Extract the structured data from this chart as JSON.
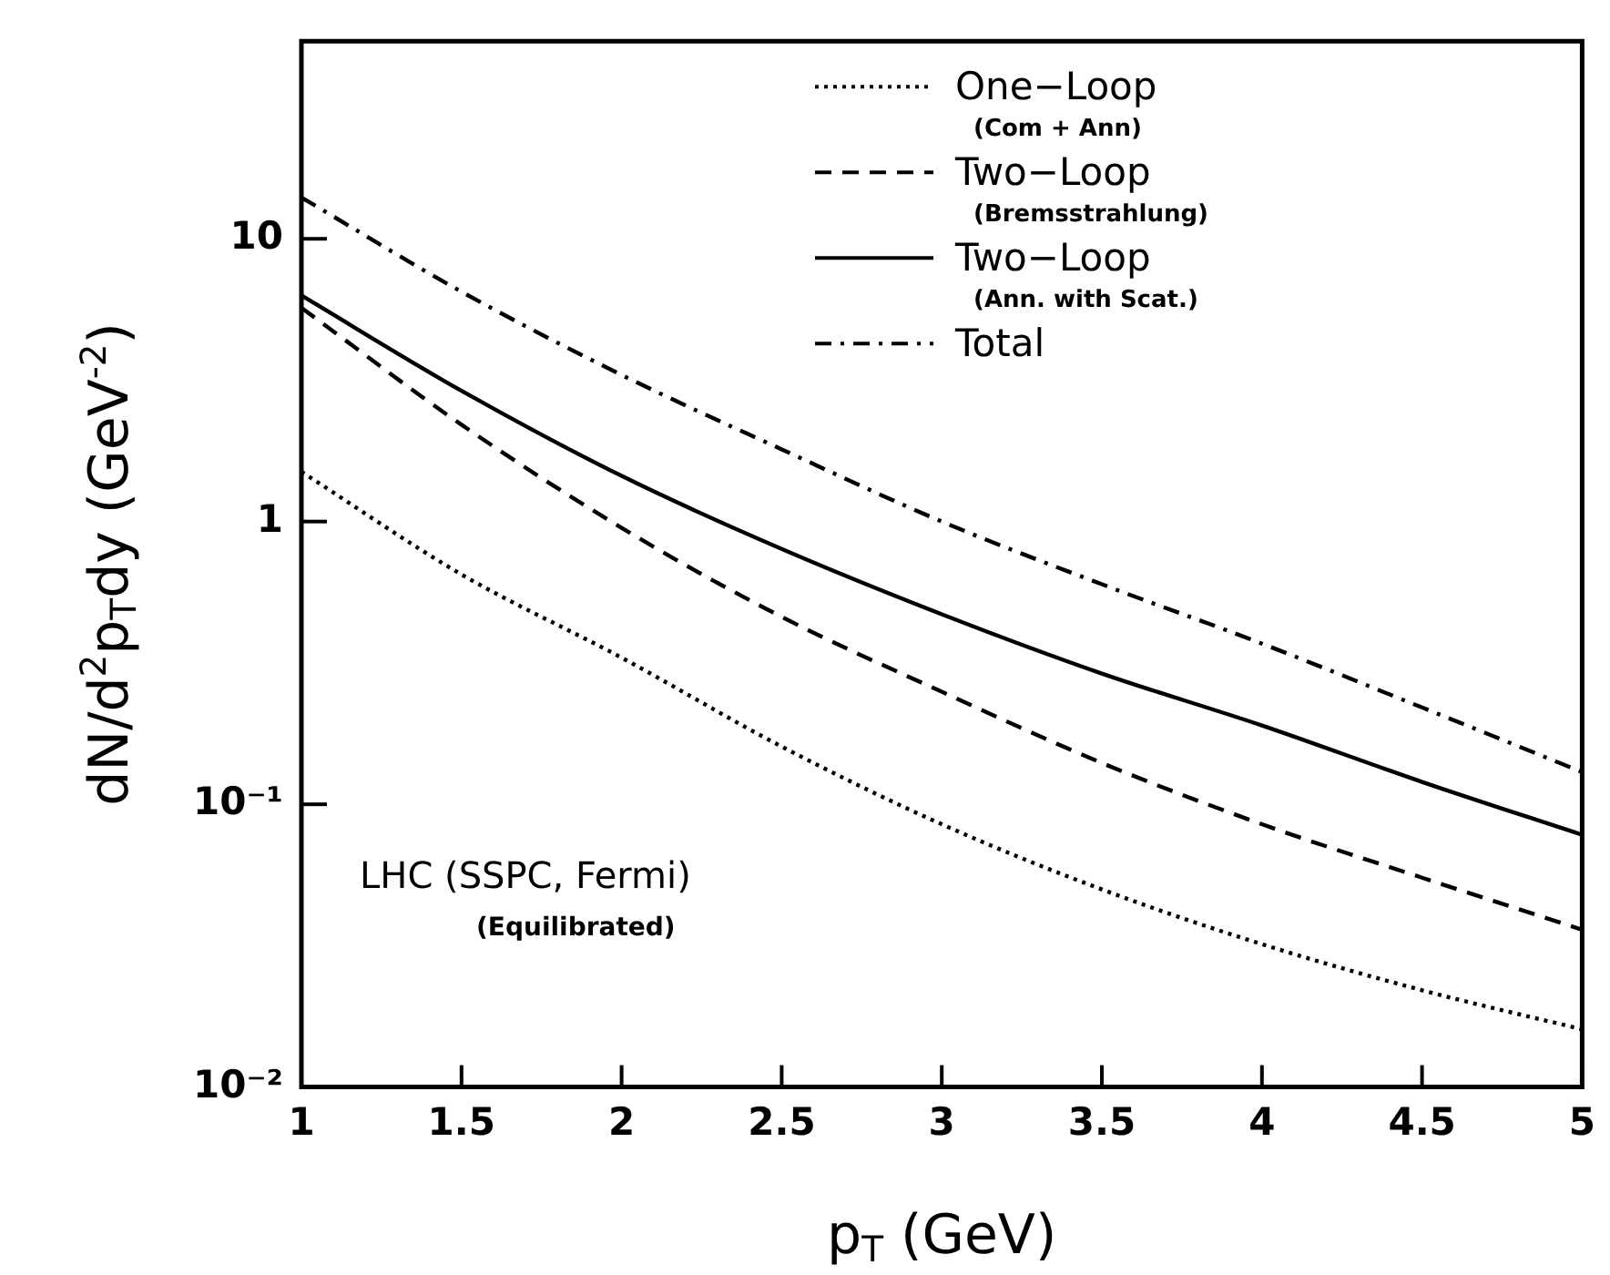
{
  "chart_data": {
    "type": "line",
    "xlabel": "p$_{T}$ (GeV)",
    "ylabel": "dN/d$^{2}$p$_{T}$dy (GeV$^{-2}$)",
    "x": [
      1,
      1.5,
      2,
      2.5,
      3,
      3.5,
      4,
      4.5,
      5
    ],
    "series": [
      {
        "name": "One−Loop\n(Com + Ann)",
        "color": "#000000",
        "line_style": "dotted",
        "values": [
          1.5,
          0.65,
          0.33,
          0.16,
          0.085,
          0.05,
          0.032,
          0.022,
          0.016
        ]
      },
      {
        "name": "Two−Loop\n(Bremsstrahlung)",
        "color": "#000000",
        "line_style": "dashed",
        "values": [
          5.7,
          2.2,
          0.95,
          0.46,
          0.25,
          0.14,
          0.085,
          0.055,
          0.036
        ]
      },
      {
        "name": "Two−Loop\n(Ann. with Scat.)",
        "color": "#000000",
        "line_style": "solid",
        "values": [
          6.3,
          2.9,
          1.45,
          0.8,
          0.47,
          0.29,
          0.19,
          0.12,
          0.078
        ]
      },
      {
        "name": "Total",
        "color": "#000000",
        "line_style": "dashdot",
        "values": [
          14,
          6.5,
          3.3,
          1.8,
          1.0,
          0.6,
          0.37,
          0.22,
          0.13
        ]
      }
    ],
    "xlim": [
      1,
      5
    ],
    "xticks": [
      1,
      1.5,
      2,
      2.5,
      3,
      3.5,
      4,
      4.5,
      5
    ],
    "ylim": [
      0.01,
      50
    ],
    "yticks": [
      {
        "value": 0.01,
        "label": "10⁻²"
      },
      {
        "value": 0.1,
        "label": "10⁻¹"
      },
      1,
      10
    ],
    "log": "y",
    "grid": false,
    "legend": "top right",
    "marker": "none",
    "annotations": [
      "LHC (SSPC, Fermi)",
      "(Equilibrated)"
    ]
  }
}
